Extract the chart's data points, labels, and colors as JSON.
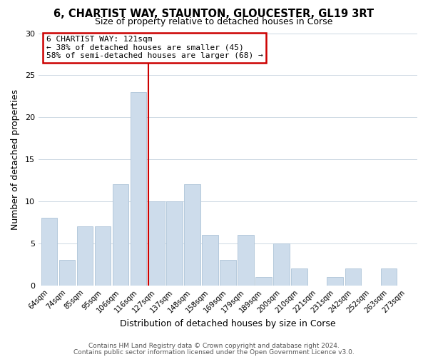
{
  "title": "6, CHARTIST WAY, STAUNTON, GLOUCESTER, GL19 3RT",
  "subtitle": "Size of property relative to detached houses in Corse",
  "xlabel": "Distribution of detached houses by size in Corse",
  "ylabel": "Number of detached properties",
  "categories": [
    "64sqm",
    "74sqm",
    "85sqm",
    "95sqm",
    "106sqm",
    "116sqm",
    "127sqm",
    "137sqm",
    "148sqm",
    "158sqm",
    "169sqm",
    "179sqm",
    "189sqm",
    "200sqm",
    "210sqm",
    "221sqm",
    "231sqm",
    "242sqm",
    "252sqm",
    "263sqm",
    "273sqm"
  ],
  "values": [
    8,
    3,
    7,
    7,
    12,
    23,
    10,
    10,
    12,
    6,
    3,
    6,
    1,
    5,
    2,
    0,
    1,
    2,
    0,
    2,
    0
  ],
  "bar_color": "#cddceb",
  "bar_edgecolor": "#aec4d8",
  "highlight_index": 6,
  "highlight_line_color": "#cc0000",
  "ylim": [
    0,
    30
  ],
  "yticks": [
    0,
    5,
    10,
    15,
    20,
    25,
    30
  ],
  "annotation_text": "6 CHARTIST WAY: 121sqm\n← 38% of detached houses are smaller (45)\n58% of semi-detached houses are larger (68) →",
  "annotation_box_edgecolor": "#cc0000",
  "footer1": "Contains HM Land Registry data © Crown copyright and database right 2024.",
  "footer2": "Contains public sector information licensed under the Open Government Licence v3.0.",
  "background_color": "#ffffff",
  "grid_color": "#cdd8e3"
}
